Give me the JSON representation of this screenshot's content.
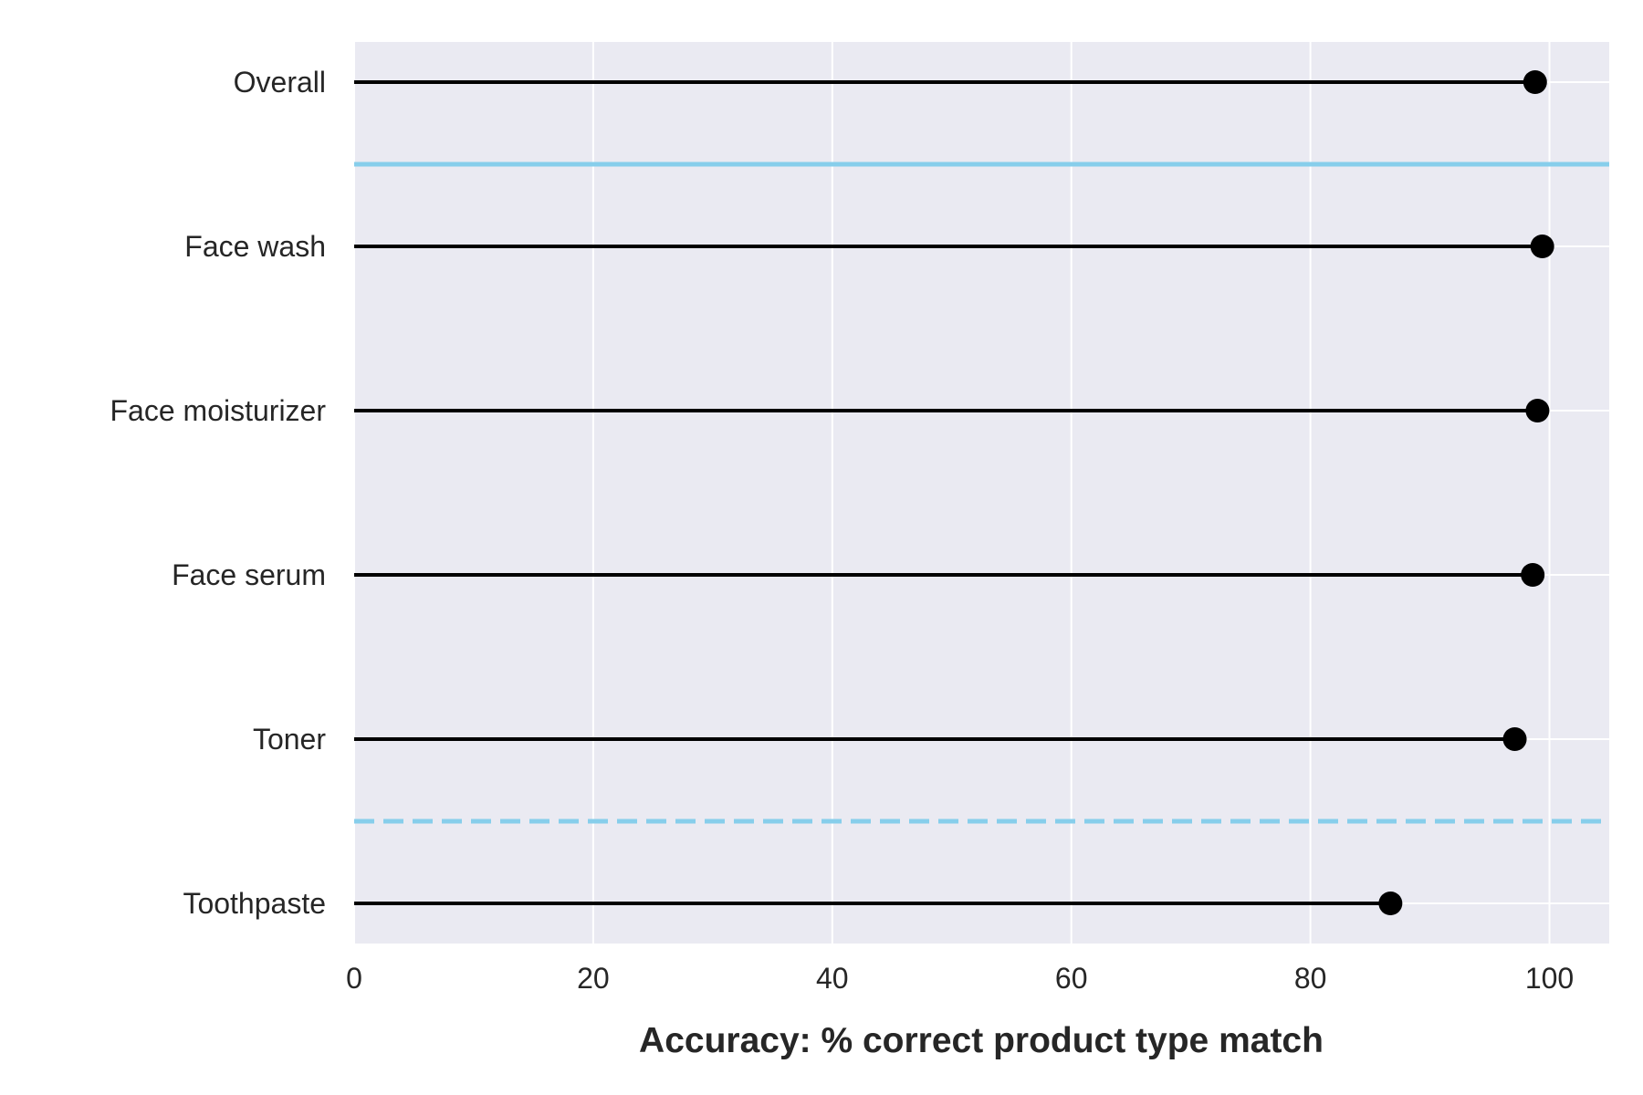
{
  "chart_data": {
    "type": "lollipop",
    "orientation": "horizontal",
    "categories": [
      "Overall",
      "Face wash",
      "Face moisturizer",
      "Face serum",
      "Toner",
      "Toothpaste"
    ],
    "values": [
      98.8,
      99.4,
      99.0,
      98.6,
      97.1,
      86.7
    ],
    "title": "",
    "xlabel": "Accuracy: % correct product type match",
    "ylabel": "",
    "xlim": [
      0,
      105
    ],
    "xticks": [
      0,
      20,
      40,
      60,
      80,
      100
    ],
    "grid": true,
    "legend": "none",
    "separators": [
      {
        "after_category": "Overall",
        "style": "solid"
      },
      {
        "after_category": "Toner",
        "style": "dashed"
      }
    ],
    "colors": {
      "plot_background": "#eaeaf2",
      "grid": "#ffffff",
      "stem": "#000000",
      "marker": "#000000",
      "separator": "#87ceeb",
      "text": "#262626"
    }
  }
}
